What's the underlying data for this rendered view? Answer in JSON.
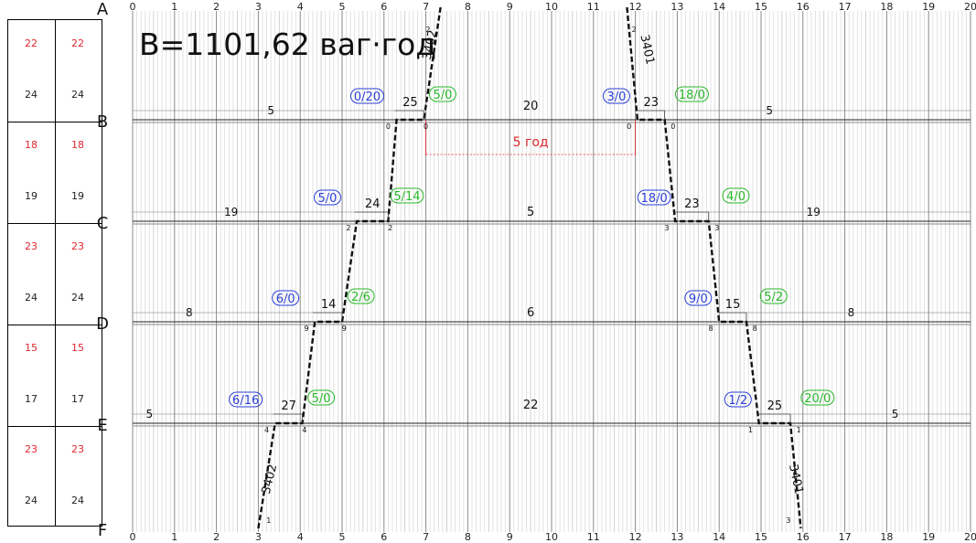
{
  "title": "B=1101,62 ваг·год",
  "x_ticks": [
    "0",
    "1",
    "2",
    "3",
    "4",
    "5",
    "6",
    "7",
    "8",
    "9",
    "10",
    "11",
    "12",
    "13",
    "14",
    "15",
    "16",
    "17",
    "18",
    "19",
    "20"
  ],
  "stations": [
    "A",
    "B",
    "C",
    "D",
    "E",
    "F"
  ],
  "side_table": [
    {
      "top": [
        "22",
        "22"
      ],
      "bottom": [
        "24",
        "24"
      ]
    },
    {
      "top": [
        "18",
        "18"
      ],
      "bottom": [
        "19",
        "19"
      ]
    },
    {
      "top": [
        "23",
        "23"
      ],
      "bottom": [
        "24",
        "24"
      ]
    },
    {
      "top": [
        "15",
        "15"
      ],
      "bottom": [
        "17",
        "17"
      ]
    },
    {
      "top": [
        "23",
        "23"
      ],
      "bottom": [
        "24",
        "24"
      ]
    }
  ],
  "colors": {
    "black": "#111111",
    "red": "#e0282e",
    "blue": "#2b3fd8",
    "green": "#29b829",
    "grid": "#9a9a9a"
  },
  "left_train": {
    "label_bottom": "3402",
    "label_top": "3402",
    "arrivals": [
      {
        "station": "B",
        "track": "0",
        "dep_track": "0",
        "count": "25",
        "left_num": "5",
        "ann_blue": "0/20",
        "ann_green": "5/0"
      },
      {
        "station": "C",
        "track": "2",
        "dep_track": "2",
        "count": "24",
        "left_num": "19",
        "ann_blue": "5/0",
        "ann_green": "5/14"
      },
      {
        "station": "D",
        "track": "9",
        "dep_track": "9",
        "count": "14",
        "left_num": "8",
        "ann_blue": "6/0",
        "ann_green": "2/6"
      },
      {
        "station": "E",
        "track": "4",
        "dep_track": "4",
        "count": "27",
        "left_num": "5",
        "ann_blue": "6/16",
        "ann_green": "5/0"
      }
    ],
    "end_tracks": {
      "A": "2",
      "F": "1"
    }
  },
  "right_train": {
    "label_bottom": "3401",
    "label_top": "3401",
    "arrivals": [
      {
        "station": "B",
        "track": "0",
        "dep_track": "0",
        "count": "23",
        "right_num": "5",
        "ann_blue": "3/0",
        "ann_green": "18/0"
      },
      {
        "station": "C",
        "track": "3",
        "dep_track": "3",
        "count": "23",
        "right_num": "19",
        "ann_blue": "18/0",
        "ann_green": "4/0"
      },
      {
        "station": "D",
        "track": "8",
        "dep_track": "8",
        "count": "15",
        "right_num": "8",
        "ann_blue": "9/0",
        "ann_green": "5/2"
      },
      {
        "station": "E",
        "track": "1",
        "dep_track": "1",
        "count": "25",
        "right_num": "5",
        "ann_blue": "1/2",
        "ann_green": "20/0"
      }
    ],
    "end_tracks": {
      "A": "2",
      "F": "3"
    }
  },
  "middle_numbers": {
    "B": "20",
    "C": "5",
    "D": "6",
    "E": "22"
  },
  "interval_label": "5 год"
}
